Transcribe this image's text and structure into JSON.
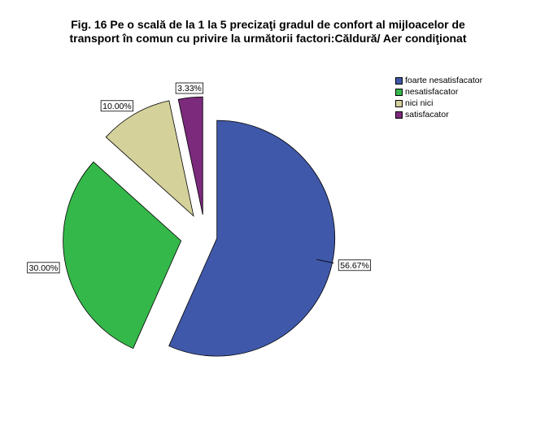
{
  "title_line1": "Fig. 16   Pe o scală de la 1 la 5 precizaţi gradul de confort al mijloacelor de",
  "title_line2": "transport în comun cu privire la următorii factori:Căldură/ Aer condiţionat",
  "chart_data": {
    "type": "pie",
    "title": "Fig. 16   Pe o scală de la 1 la 5 precizaţi gradul de confort al mijloacelor de transport în comun cu privire la următorii factori:Căldură/ Aer condiţionat",
    "legend_position": "top-right",
    "slices": [
      {
        "name": "foarte nesatisfacator",
        "value": 56.67,
        "label": "56.67%",
        "color": "#3f58a9"
      },
      {
        "name": "nesatisfacator",
        "value": 30.0,
        "label": "30.00%",
        "color": "#35b84a"
      },
      {
        "name": "nici nici",
        "value": 10.0,
        "label": "10.00%",
        "color": "#d5d19b"
      },
      {
        "name": "satisfacator",
        "value": 3.33,
        "label": "3.33%",
        "color": "#7b2a7c"
      }
    ]
  }
}
